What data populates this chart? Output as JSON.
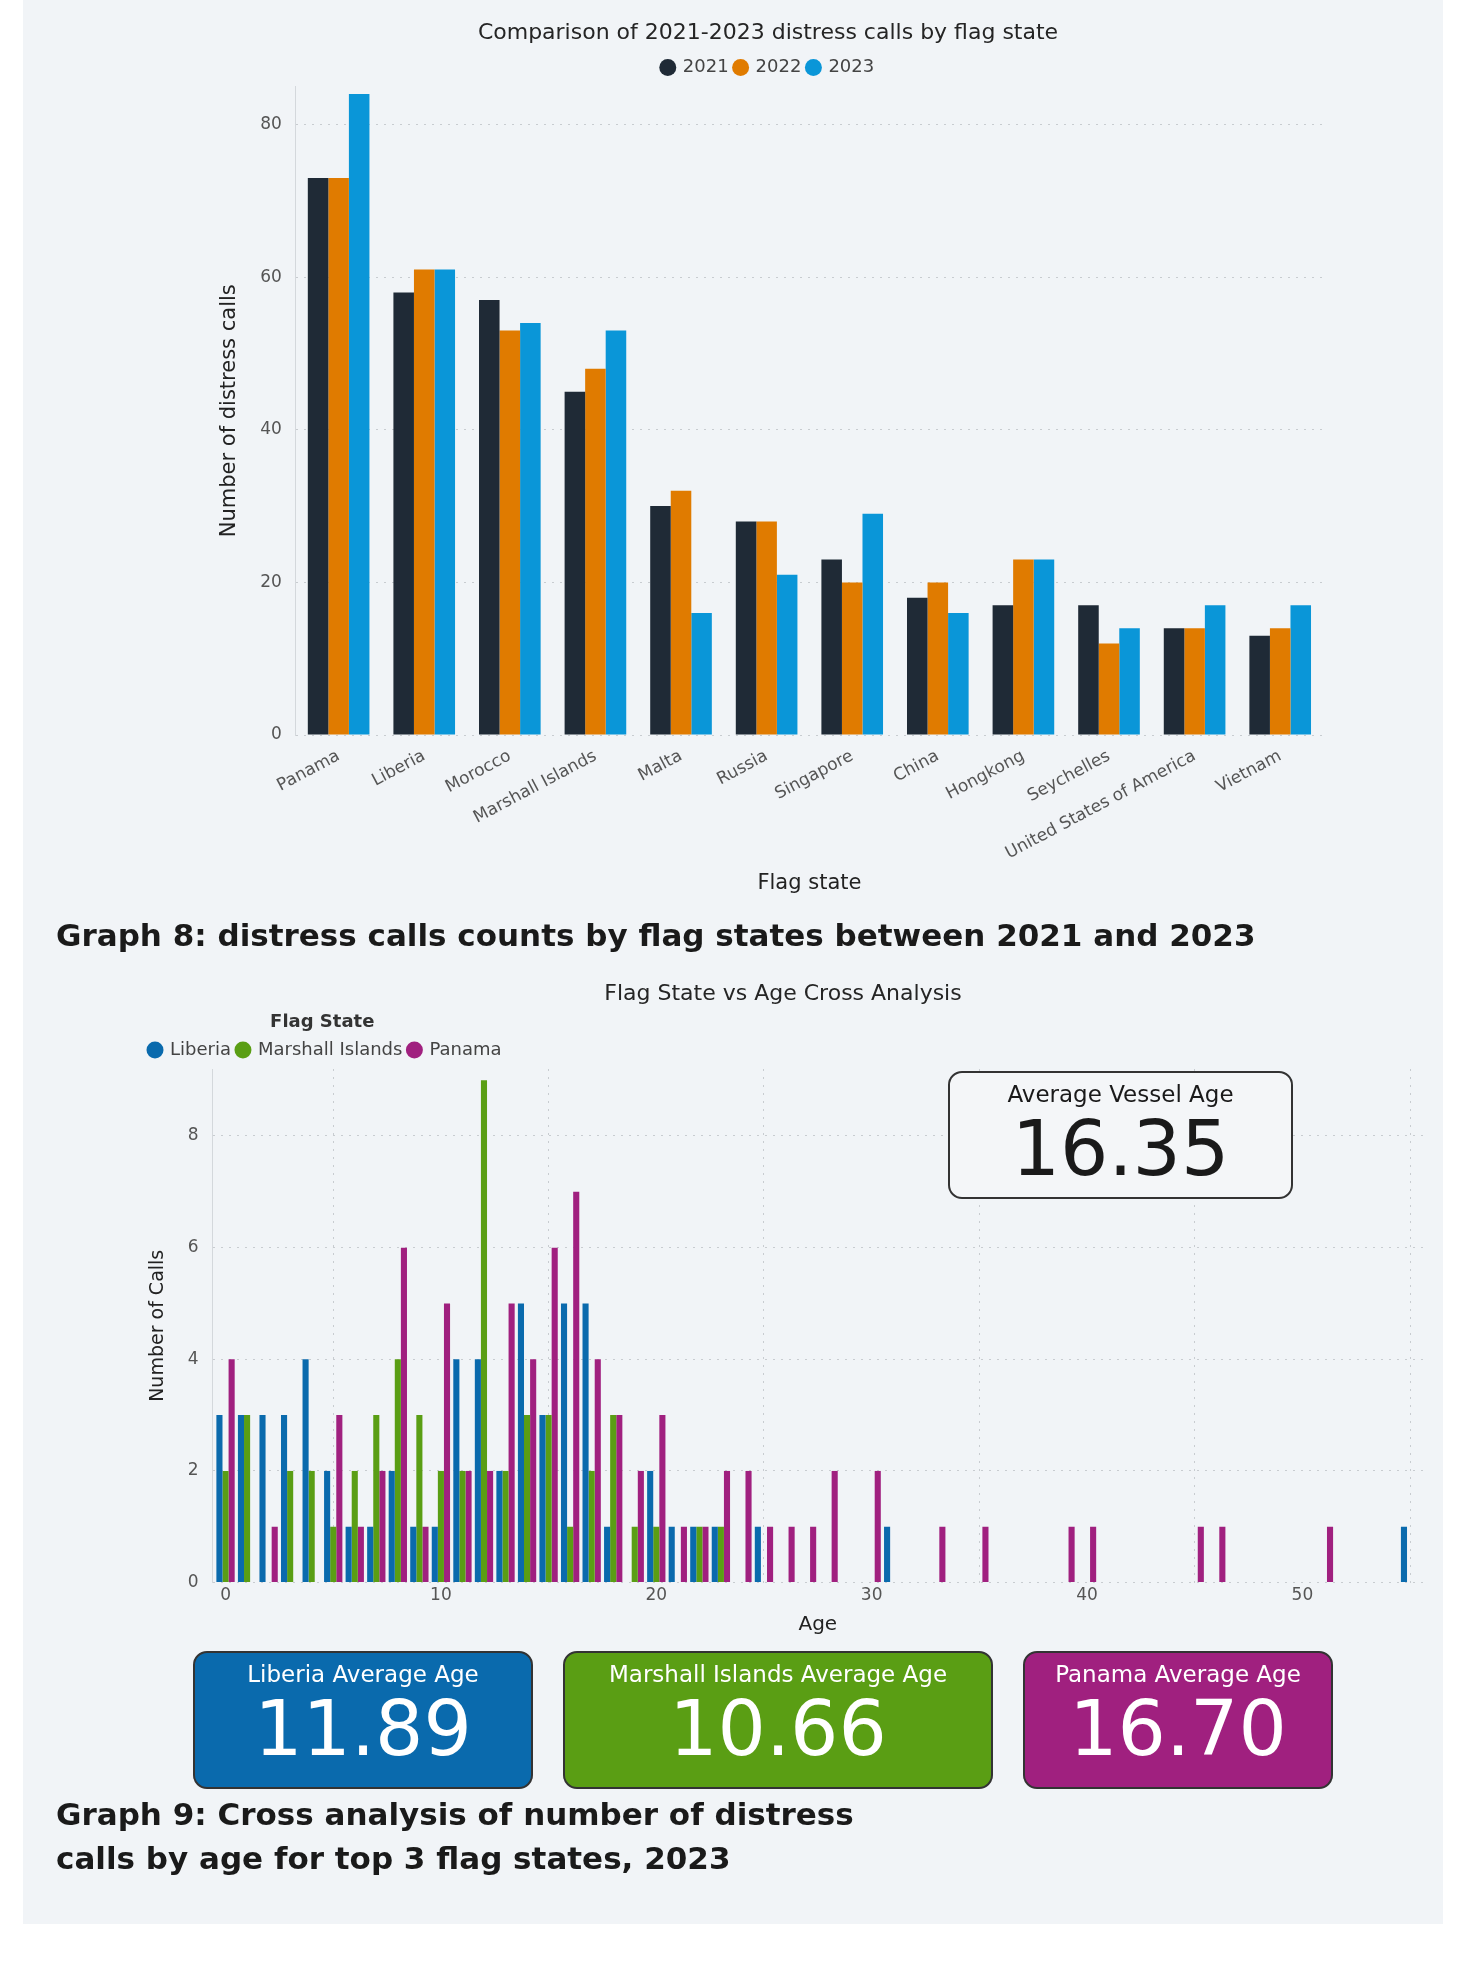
{
  "chart_data": [
    {
      "type": "bar",
      "title": "Comparison of 2021-2023 distress calls by flag state",
      "xlabel": "Flag state",
      "ylabel": "Number of distress calls",
      "categories": [
        "Panama",
        "Liberia",
        "Morocco",
        "Marshall Islands",
        "Malta",
        "Russia",
        "Singapore",
        "China",
        "Hongkong",
        "Seychelles",
        "United States of America",
        "Vietnam"
      ],
      "series": [
        {
          "name": "2021",
          "color": "#1f2a36",
          "values": [
            73,
            58,
            57,
            45,
            30,
            28,
            23,
            18,
            17,
            17,
            14,
            13
          ]
        },
        {
          "name": "2022",
          "color": "#e07b00",
          "values": [
            73,
            61,
            53,
            48,
            32,
            28,
            20,
            20,
            23,
            12,
            14,
            14
          ]
        },
        {
          "name": "2023",
          "color": "#0a96d8",
          "values": [
            84,
            61,
            54,
            53,
            16,
            21,
            29,
            16,
            23,
            14,
            17,
            17
          ]
        }
      ],
      "ylim": [
        0,
        85
      ],
      "yticks": [
        0,
        20,
        40,
        60,
        80
      ],
      "grid": "y",
      "legend": "top",
      "annotations": [
        "Graph 8: distress calls counts by flag states between 2021 and 2023"
      ]
    },
    {
      "type": "bar",
      "title": "Flag State vs Age Cross Analysis",
      "xlabel": "Age",
      "ylabel": "Number of Calls",
      "legend_title": "Flag State",
      "x": [
        0,
        1,
        2,
        3,
        4,
        5,
        6,
        7,
        8,
        9,
        10,
        11,
        12,
        13,
        14,
        15,
        16,
        17,
        18,
        19,
        20,
        21,
        22,
        23,
        24,
        25,
        26,
        27,
        28,
        29,
        30,
        31,
        32,
        33,
        34,
        35,
        36,
        37,
        38,
        39,
        40,
        41,
        42,
        43,
        44,
        45,
        46,
        47,
        48,
        49,
        50,
        51,
        52,
        53,
        54,
        55
      ],
      "series": [
        {
          "name": "Liberia",
          "color": "#0a6aad",
          "values": [
            3,
            3,
            3,
            3,
            4,
            2,
            1,
            1,
            2,
            1,
            1,
            4,
            4,
            2,
            5,
            3,
            5,
            5,
            1,
            null,
            2,
            1,
            1,
            1,
            null,
            1,
            null,
            null,
            null,
            null,
            null,
            1,
            null,
            null,
            null,
            null,
            null,
            null,
            null,
            null,
            null,
            null,
            null,
            null,
            null,
            null,
            null,
            null,
            null,
            null,
            null,
            null,
            null,
            null,
            null,
            1
          ]
        },
        {
          "name": "Marshall Islands",
          "color": "#5a9e14",
          "values": [
            2,
            3,
            null,
            2,
            2,
            1,
            2,
            3,
            4,
            3,
            2,
            2,
            9,
            2,
            3,
            3,
            1,
            2,
            3,
            1,
            1,
            null,
            1,
            1,
            null,
            null,
            null,
            null,
            null,
            null,
            null,
            null,
            null,
            null,
            null,
            null,
            null,
            null,
            null,
            null,
            null,
            null,
            null,
            null,
            null,
            null,
            null,
            null,
            null,
            null,
            null,
            null,
            null,
            null,
            null,
            null
          ]
        },
        {
          "name": "Panama",
          "color": "#a0207f",
          "values": [
            4,
            null,
            1,
            null,
            null,
            3,
            1,
            2,
            6,
            1,
            5,
            2,
            2,
            5,
            4,
            6,
            7,
            4,
            3,
            2,
            3,
            1,
            1,
            2,
            2,
            1,
            1,
            1,
            2,
            null,
            2,
            null,
            null,
            1,
            null,
            1,
            null,
            null,
            null,
            1,
            1,
            null,
            null,
            null,
            null,
            1,
            1,
            null,
            null,
            null,
            null,
            1,
            null,
            null,
            null,
            null
          ]
        }
      ],
      "xlim": [
        -0.6,
        55.6
      ],
      "xticks": [
        0,
        10,
        20,
        30,
        40,
        50
      ],
      "ylim": [
        0,
        9.2
      ],
      "yticks": [
        0,
        2,
        4,
        6,
        8
      ],
      "grid": true,
      "legend": "top left",
      "annotations": [
        "Graph 9: Cross analysis of number of distress calls by age for top 3 flag states, 2023"
      ]
    },
    {
      "type": "other",
      "title": "Average Vessel Age",
      "annotations": [
        "16.35"
      ]
    },
    {
      "type": "other",
      "title": "Liberia Average Age",
      "annotations": [
        "11.89"
      ],
      "color": "#0a6aad"
    },
    {
      "type": "other",
      "title": "Marshall Islands Average Age",
      "annotations": [
        "10.66"
      ],
      "color": "#5a9e14"
    },
    {
      "type": "other",
      "title": "Panama Average Age",
      "annotations": [
        "16.70"
      ],
      "color": "#a0207f"
    }
  ]
}
